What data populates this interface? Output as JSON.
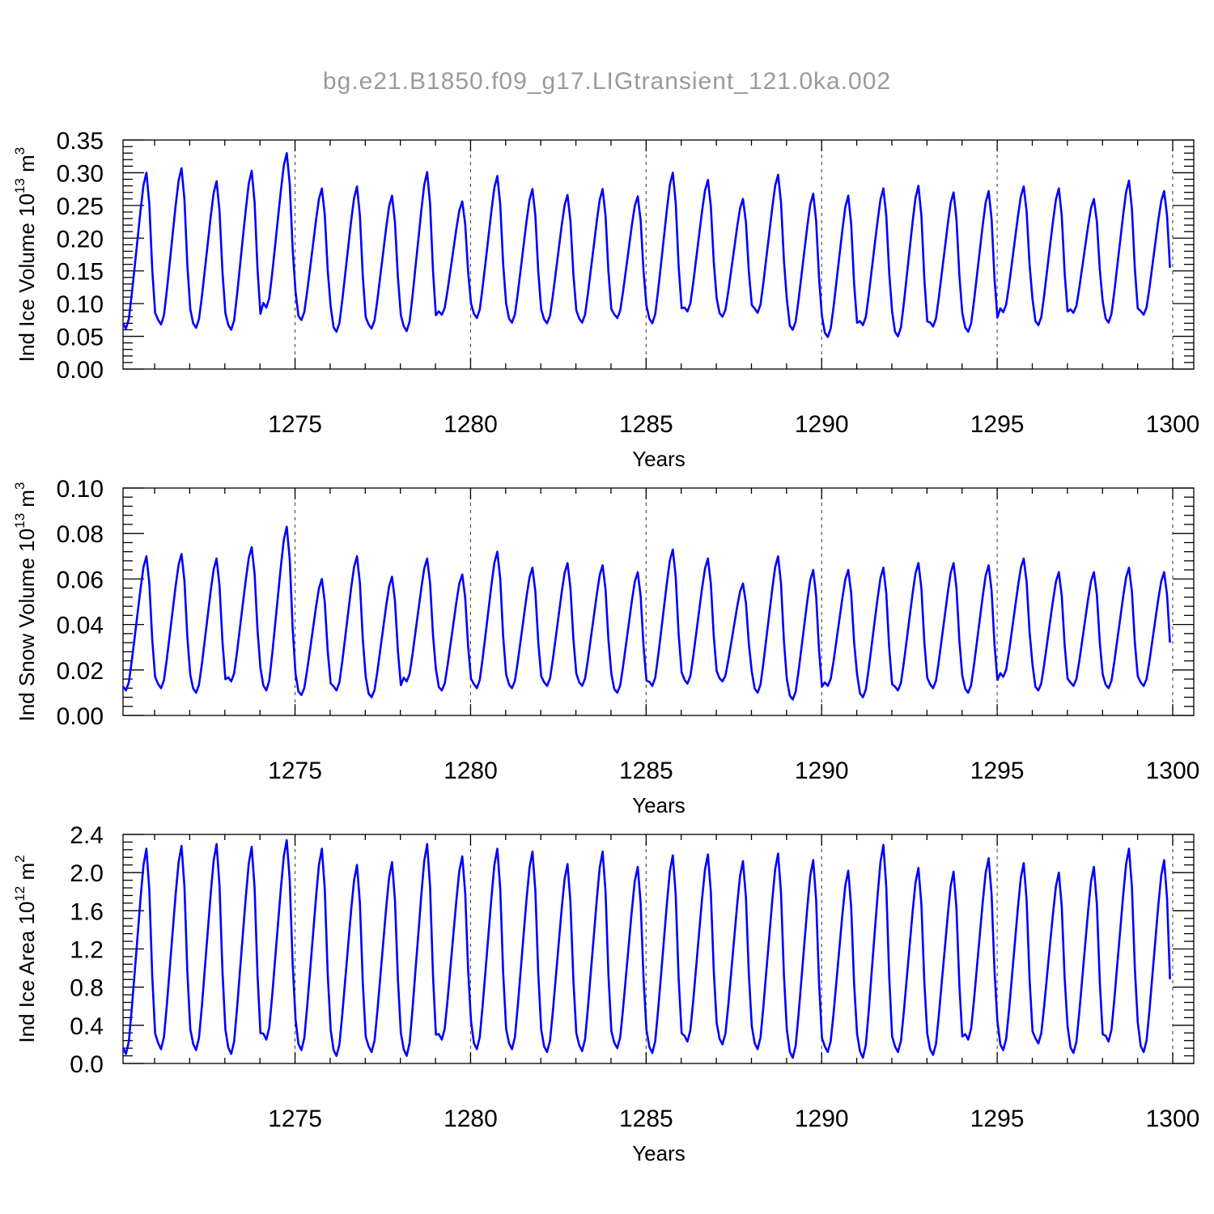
{
  "figure": {
    "title": "bg.e21.B1850.f09_g17.LIGtransient_121.0ka.002"
  },
  "chart_data": [
    {
      "type": "line",
      "id": "ice-volume",
      "xlabel": "Years",
      "ylabel": {
        "text": "Ind Ice Volume 10",
        "sup": "13",
        "unit": " m",
        "unit_sup": "3"
      },
      "xlim": [
        1270.1,
        1300.0
      ],
      "ylim": [
        0.0,
        0.35
      ],
      "xticks": [
        1275,
        1280,
        1285,
        1290,
        1295,
        1300
      ],
      "yticks": [
        "0.00",
        "0.05",
        "0.10",
        "0.15",
        "0.20",
        "0.25",
        "0.30",
        "0.35"
      ],
      "grid": "x-dashed",
      "color": "#0000ff",
      "start_year": 1270.1,
      "step": 0.0833,
      "min": [
        0.062,
        0.068,
        0.063,
        0.06,
        0.094,
        0.075,
        0.057,
        0.062,
        0.058,
        0.083,
        0.078,
        0.071,
        0.07,
        0.071,
        0.078,
        0.07,
        0.088,
        0.08,
        0.086,
        0.06,
        0.049,
        0.067,
        0.05,
        0.065,
        0.057,
        0.087,
        0.067,
        0.086,
        0.071,
        0.083
      ],
      "max": [
        0.3,
        0.307,
        0.287,
        0.303,
        0.33,
        0.276,
        0.279,
        0.265,
        0.301,
        0.256,
        0.295,
        0.275,
        0.266,
        0.275,
        0.264,
        0.3,
        0.289,
        0.26,
        0.297,
        0.268,
        0.265,
        0.276,
        0.28,
        0.27,
        0.272,
        0.279,
        0.276,
        0.26,
        0.288,
        0.272
      ]
    },
    {
      "type": "line",
      "id": "snow-volume",
      "xlabel": "Years",
      "ylabel": {
        "text": "Ind Snow Volume 10",
        "sup": "13",
        "unit": " m",
        "unit_sup": "3"
      },
      "xlim": [
        1270.1,
        1300.0
      ],
      "ylim": [
        0.0,
        0.1
      ],
      "xticks": [
        1275,
        1280,
        1285,
        1290,
        1295,
        1300
      ],
      "yticks": [
        "0.00",
        "0.02",
        "0.04",
        "0.06",
        "0.08",
        "0.10"
      ],
      "grid": "x-dashed",
      "color": "#0000ff",
      "start_year": 1270.1,
      "step": 0.0833,
      "min": [
        0.011,
        0.012,
        0.01,
        0.015,
        0.011,
        0.009,
        0.011,
        0.008,
        0.015,
        0.011,
        0.012,
        0.012,
        0.013,
        0.013,
        0.01,
        0.013,
        0.014,
        0.015,
        0.01,
        0.007,
        0.013,
        0.008,
        0.011,
        0.012,
        0.01,
        0.017,
        0.011,
        0.013,
        0.012,
        0.013
      ],
      "max": [
        0.07,
        0.071,
        0.069,
        0.074,
        0.083,
        0.06,
        0.07,
        0.061,
        0.069,
        0.062,
        0.072,
        0.065,
        0.067,
        0.066,
        0.063,
        0.073,
        0.069,
        0.058,
        0.07,
        0.064,
        0.064,
        0.065,
        0.067,
        0.067,
        0.066,
        0.069,
        0.063,
        0.063,
        0.065,
        0.063
      ]
    },
    {
      "type": "line",
      "id": "ice-area",
      "xlabel": "Years",
      "ylabel": {
        "text": "Ind Ice Area 10",
        "sup": "12",
        "unit": " m",
        "unit_sup": "2"
      },
      "xlim": [
        1270.1,
        1300.0
      ],
      "ylim": [
        0.0,
        2.4
      ],
      "xticks": [
        1275,
        1280,
        1285,
        1290,
        1295,
        1300
      ],
      "yticks": [
        "0.0",
        "0.4",
        "0.8",
        "1.2",
        "1.6",
        "2.0",
        "2.4"
      ],
      "grid": "x-dashed",
      "color": "#0000ff",
      "start_year": 1270.1,
      "step": 0.0833,
      "min": [
        0.1,
        0.15,
        0.14,
        0.1,
        0.25,
        0.14,
        0.08,
        0.12,
        0.08,
        0.25,
        0.15,
        0.15,
        0.12,
        0.13,
        0.16,
        0.11,
        0.23,
        0.2,
        0.15,
        0.06,
        0.12,
        0.06,
        0.12,
        0.09,
        0.25,
        0.14,
        0.21,
        0.11,
        0.23,
        0.12
      ],
      "max": [
        2.25,
        2.28,
        2.3,
        2.27,
        2.34,
        2.25,
        2.08,
        2.11,
        2.3,
        2.17,
        2.25,
        2.22,
        2.09,
        2.22,
        2.06,
        2.18,
        2.19,
        2.12,
        2.2,
        2.13,
        2.02,
        2.29,
        2.05,
        2.01,
        2.15,
        2.1,
        2.0,
        2.06,
        2.25,
        2.13
      ]
    }
  ]
}
